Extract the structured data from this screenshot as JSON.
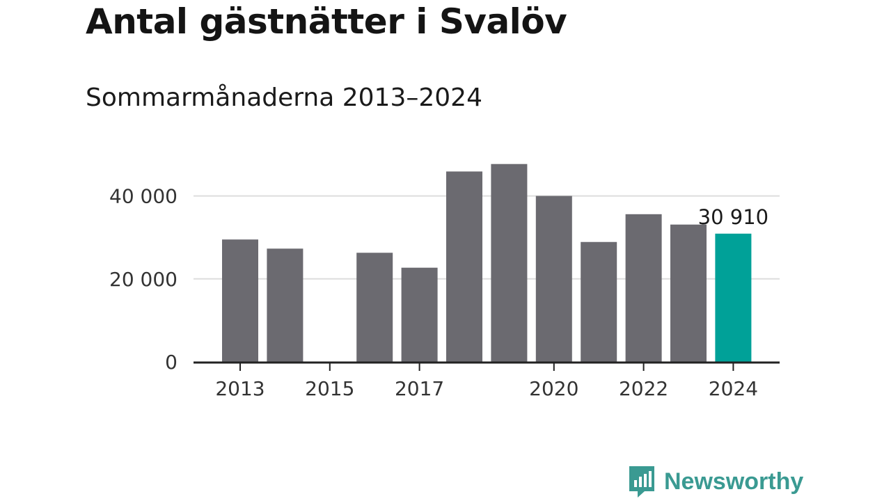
{
  "title": "Antal gästnätter i Svalöv",
  "subtitle": "Sommarmånaderna 2013–2024",
  "brand": {
    "name": "Newsworthy",
    "color": "#3a9a92"
  },
  "colors": {
    "bar": "#6b6a70",
    "highlight": "#00a198",
    "grid": "#dddddd",
    "axis": "#222222"
  },
  "chart_data": {
    "type": "bar",
    "title": "Antal gästnätter i Svalöv",
    "subtitle": "Sommarmånaderna 2013–2024",
    "categories": [
      "2013",
      "2014",
      "2015",
      "2016",
      "2017",
      "2018",
      "2019",
      "2020",
      "2021",
      "2022",
      "2023",
      "2024"
    ],
    "values": [
      29500,
      27300,
      null,
      26300,
      22700,
      45900,
      47700,
      40000,
      28900,
      35600,
      33100,
      30910
    ],
    "highlight_index": 11,
    "annotations": [
      {
        "category": "2024",
        "text": "30 910"
      }
    ],
    "x_tick_labels": [
      "2013",
      "2015",
      "2017",
      "2020",
      "2022",
      "2024"
    ],
    "y_ticks": [
      0,
      20000,
      40000
    ],
    "y_tick_labels": [
      "0",
      "20 000",
      "40 000"
    ],
    "ylim": [
      0,
      50000
    ],
    "grid": true,
    "legend": "none"
  }
}
